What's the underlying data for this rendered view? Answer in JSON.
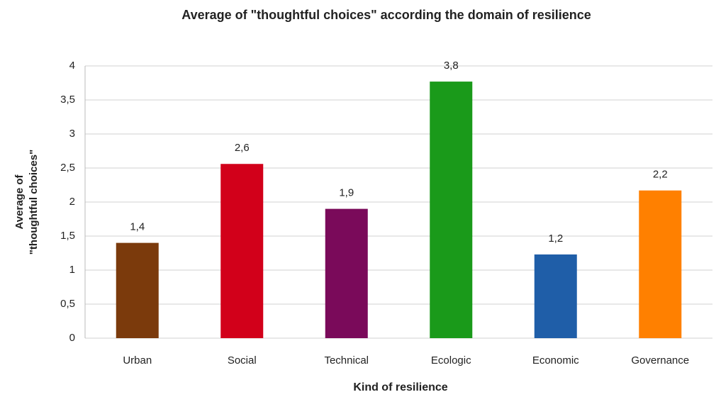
{
  "chart_data": {
    "type": "bar",
    "title": "Average of  \"thoughtful choices\" according the domain of resilience",
    "xlabel": "Kind of resilience",
    "ylabel": [
      "Average of",
      "\"thoughtful choices\""
    ],
    "categories": [
      "Urban",
      "Social",
      "Technical",
      "Ecologic",
      "Economic",
      "Governance"
    ],
    "values": [
      1.4,
      2.56,
      1.9,
      3.77,
      1.23,
      2.17
    ],
    "value_labels": [
      "1,4",
      "2,6",
      "1,9",
      "3,8",
      "1,2",
      "2,2"
    ],
    "colors": [
      "#7b3a0c",
      "#d2001a",
      "#7a0a5a",
      "#1a9a1a",
      "#1f5ea8",
      "#ff8000"
    ],
    "ylim": [
      0,
      4
    ],
    "yticks": [
      0,
      {
        "value": 0.5,
        "label": "0,5"
      },
      1,
      {
        "value": 1.5,
        "label": "1,5"
      },
      2,
      {
        "value": 2.5,
        "label": "2,5"
      },
      3,
      {
        "value": 3.5,
        "label": "3,5"
      },
      4
    ],
    "grid": true
  }
}
